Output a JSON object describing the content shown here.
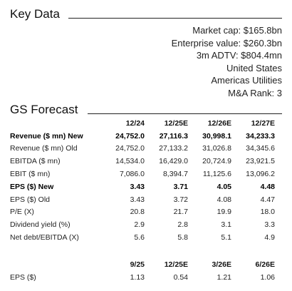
{
  "key_data": {
    "title": "Key Data",
    "items": [
      "Market cap: $165.8bn",
      "Enterprise value: $260.3bn",
      "3m ADTV: $804.4mn",
      "United States",
      "Americas Utilities",
      "M&A Rank: 3"
    ]
  },
  "gs_forecast": {
    "title": "GS Forecast",
    "headers": [
      "12/24",
      "12/25E",
      "12/26E",
      "12/27E"
    ],
    "rows": [
      {
        "label": "Revenue ($ mn) New",
        "bold": true,
        "values": [
          "24,752.0",
          "27,116.3",
          "30,998.1",
          "34,233.3"
        ]
      },
      {
        "label": "Revenue ($ mn) Old",
        "bold": false,
        "values": [
          "24,752.0",
          "27,133.2",
          "31,026.8",
          "34,345.6"
        ]
      },
      {
        "label": "EBITDA ($ mn)",
        "bold": false,
        "values": [
          "14,534.0",
          "16,429.0",
          "20,724.9",
          "23,921.5"
        ]
      },
      {
        "label": "EBIT ($ mn)",
        "bold": false,
        "values": [
          "7,086.0",
          "8,394.7",
          "11,125.6",
          "13,096.2"
        ]
      },
      {
        "label": "EPS ($) New",
        "bold": true,
        "values": [
          "3.43",
          "3.71",
          "4.05",
          "4.48"
        ]
      },
      {
        "label": "EPS ($) Old",
        "bold": false,
        "values": [
          "3.43",
          "3.72",
          "4.08",
          "4.47"
        ]
      },
      {
        "label": "P/E (X)",
        "bold": false,
        "values": [
          "20.8",
          "21.7",
          "19.9",
          "18.0"
        ]
      },
      {
        "label": "Dividend yield (%)",
        "bold": false,
        "values": [
          "2.9",
          "2.8",
          "3.1",
          "3.3"
        ]
      },
      {
        "label": "Net debt/EBITDA (X)",
        "bold": false,
        "values": [
          "5.6",
          "5.8",
          "5.1",
          "4.9"
        ]
      }
    ],
    "quarterly_headers": [
      "9/25",
      "12/25E",
      "3/26E",
      "6/26E"
    ],
    "quarterly_rows": [
      {
        "label": "EPS ($)",
        "values": [
          "1.13",
          "0.54",
          "1.21",
          "1.06"
        ]
      }
    ]
  }
}
